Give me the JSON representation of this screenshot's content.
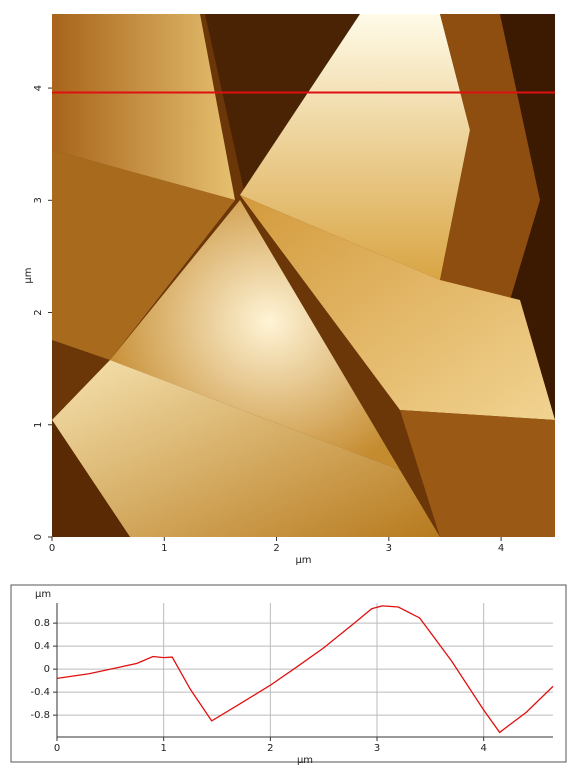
{
  "chart_data": [
    {
      "type": "image",
      "xlabel": "µm",
      "ylabel": "µm",
      "xlim": [
        0,
        4.48
      ],
      "ylim": [
        0,
        4.66
      ],
      "xticks": [
        0,
        1,
        2,
        3,
        4
      ],
      "yticks": [
        0,
        1,
        2,
        3,
        4
      ],
      "profile_y": 3.96,
      "profile_color": "#e01010"
    },
    {
      "type": "line",
      "xlabel": "µm",
      "ylabel": "µm",
      "xlim": [
        0,
        4.65
      ],
      "ylim": [
        -1.18,
        1.15
      ],
      "xticks": [
        0,
        1,
        2,
        3,
        4
      ],
      "yticks": [
        0.8,
        0.4,
        0,
        -0.4,
        -0.8
      ],
      "grid": true,
      "series": [
        {
          "color": "#e01010",
          "x": [
            0,
            0.3,
            0.6,
            0.75,
            0.9,
            1.0,
            1.08,
            1.25,
            1.45,
            1.7,
            2.0,
            2.25,
            2.5,
            2.8,
            2.95,
            3.05,
            3.2,
            3.4,
            3.7,
            4.0,
            4.15,
            4.4,
            4.65
          ],
          "values": [
            -0.16,
            -0.08,
            0.04,
            0.1,
            0.22,
            0.2,
            0.21,
            -0.35,
            -0.9,
            -0.62,
            -0.28,
            0.04,
            0.37,
            0.82,
            1.05,
            1.1,
            1.08,
            0.89,
            0.14,
            -0.71,
            -1.1,
            -0.75,
            -0.3
          ]
        }
      ]
    }
  ]
}
